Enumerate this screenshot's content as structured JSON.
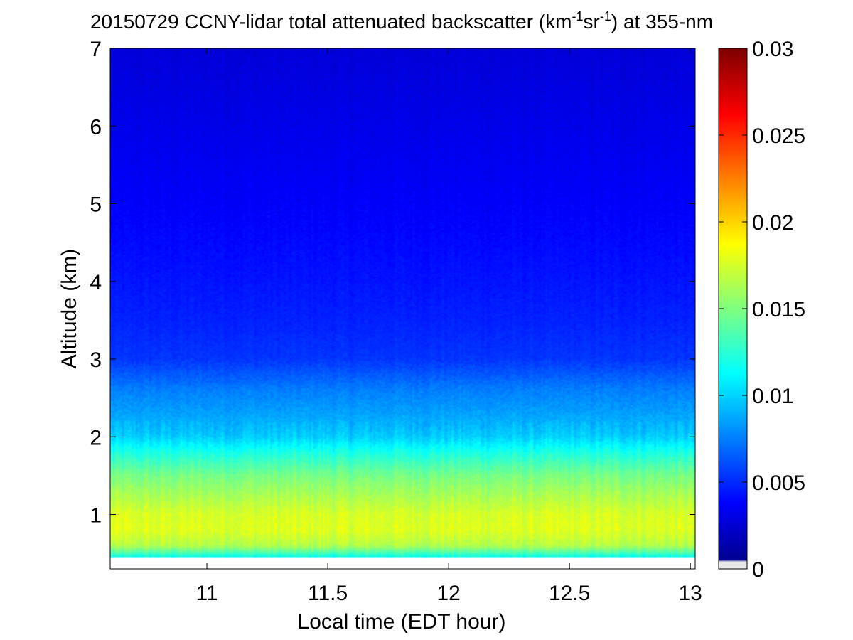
{
  "chart_data": {
    "type": "heatmap",
    "title": {
      "main": "20150729 CCNY-lidar total attenuated backscatter (km",
      "sup1": "-1",
      "mid": "sr",
      "sup2": "-1",
      "tail": ") at 355-nm"
    },
    "xlabel": "Local time (EDT hour)",
    "ylabel": "Altitude (km)",
    "xlim": [
      10.6,
      13.02
    ],
    "ylim": [
      0.3,
      7
    ],
    "xticks": [
      {
        "value": 11,
        "label": "11"
      },
      {
        "value": 11.5,
        "label": "11.5"
      },
      {
        "value": 12,
        "label": "12"
      },
      {
        "value": 12.5,
        "label": "12.5"
      },
      {
        "value": 13,
        "label": "13"
      }
    ],
    "yticks": [
      {
        "value": 1,
        "label": "1"
      },
      {
        "value": 2,
        "label": "2"
      },
      {
        "value": 3,
        "label": "3"
      },
      {
        "value": 4,
        "label": "4"
      },
      {
        "value": 5,
        "label": "5"
      },
      {
        "value": 6,
        "label": "6"
      },
      {
        "value": 7,
        "label": "7"
      }
    ],
    "data_altitude_range_km": [
      0.45,
      7
    ],
    "colormap": "jet",
    "colorbar": {
      "range": [
        0,
        0.03
      ],
      "ticks": [
        {
          "value": 0,
          "label": "0"
        },
        {
          "value": 0.005,
          "label": "0.005"
        },
        {
          "value": 0.01,
          "label": "0.01"
        },
        {
          "value": 0.015,
          "label": "0.015"
        },
        {
          "value": 0.02,
          "label": "0.02"
        },
        {
          "value": 0.025,
          "label": "0.025"
        },
        {
          "value": 0.03,
          "label": "0.03"
        }
      ],
      "lowest_band_color": "#e8e8e8"
    },
    "vertical_profile": [
      {
        "altitude": 0.45,
        "value": 0.0115
      },
      {
        "altitude": 0.6,
        "value": 0.0165
      },
      {
        "altitude": 0.8,
        "value": 0.0178
      },
      {
        "altitude": 1.0,
        "value": 0.0176
      },
      {
        "altitude": 1.2,
        "value": 0.0165
      },
      {
        "altitude": 1.5,
        "value": 0.0148
      },
      {
        "altitude": 1.8,
        "value": 0.012
      },
      {
        "altitude": 2.0,
        "value": 0.0098
      },
      {
        "altitude": 2.3,
        "value": 0.0085
      },
      {
        "altitude": 2.6,
        "value": 0.0075
      },
      {
        "altitude": 3.0,
        "value": 0.0053
      },
      {
        "altitude": 3.5,
        "value": 0.0047
      },
      {
        "altitude": 4.0,
        "value": 0.0043
      },
      {
        "altitude": 5.0,
        "value": 0.0036
      },
      {
        "altitude": 6.0,
        "value": 0.0031
      },
      {
        "altitude": 7.0,
        "value": 0.0026
      }
    ]
  }
}
